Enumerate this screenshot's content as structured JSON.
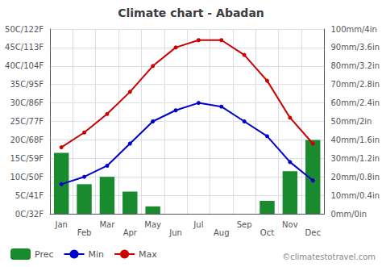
{
  "chart_data": {
    "type": "bar",
    "title": "Climate chart - Abadan",
    "categories": [
      "Jan",
      "Feb",
      "Mar",
      "Apr",
      "May",
      "Jun",
      "Jul",
      "Aug",
      "Sep",
      "Oct",
      "Nov",
      "Dec"
    ],
    "series": [
      {
        "name": "Prec",
        "type": "bar",
        "axis": "y2",
        "color": "#1a8a2e",
        "values": [
          33,
          16,
          20,
          12,
          4,
          0,
          0,
          0,
          0,
          7,
          23,
          40
        ]
      },
      {
        "name": "Min",
        "type": "line",
        "marker": "circle",
        "color": "#0000cc",
        "values": [
          8,
          10,
          13,
          19,
          25,
          28,
          30,
          29,
          25,
          21,
          14,
          9
        ]
      },
      {
        "name": "Max",
        "type": "line",
        "marker": "circle",
        "color": "#cc0000",
        "values": [
          18,
          22,
          27,
          33,
          40,
          45,
          47,
          47,
          43,
          36,
          26,
          19
        ]
      }
    ],
    "ylim": [
      0,
      50
    ],
    "yticks": [
      {
        "value": 0,
        "label": "0C/32F"
      },
      {
        "value": 5,
        "label": "5C/41F"
      },
      {
        "value": 10,
        "label": "10C/50F"
      },
      {
        "value": 15,
        "label": "15C/59F"
      },
      {
        "value": 20,
        "label": "20C/68F"
      },
      {
        "value": 25,
        "label": "25C/77F"
      },
      {
        "value": 30,
        "label": "30C/86F"
      },
      {
        "value": 35,
        "label": "35C/95F"
      },
      {
        "value": 40,
        "label": "40C/104F"
      },
      {
        "value": 45,
        "label": "45C/113F"
      },
      {
        "value": 50,
        "label": "50C/122F"
      }
    ],
    "y2lim": [
      0,
      100
    ],
    "y2ticks": [
      {
        "value": 0,
        "label": "0mm/0in"
      },
      {
        "value": 10,
        "label": "10mm/0.4in"
      },
      {
        "value": 20,
        "label": "20mm/0.8in"
      },
      {
        "value": 30,
        "label": "30mm/1.2in"
      },
      {
        "value": 40,
        "label": "40mm/1.6in"
      },
      {
        "value": 50,
        "label": "50mm/2in"
      },
      {
        "value": 60,
        "label": "60mm/2.4in"
      },
      {
        "value": 70,
        "label": "70mm/2.8in"
      },
      {
        "value": 80,
        "label": "80mm/3.2in"
      },
      {
        "value": 90,
        "label": "90mm/3.6in"
      },
      {
        "value": 100,
        "label": "100mm/4in"
      }
    ],
    "grid": true,
    "legend": "lower left",
    "annotations": [
      "©climatestotravel.com"
    ]
  }
}
